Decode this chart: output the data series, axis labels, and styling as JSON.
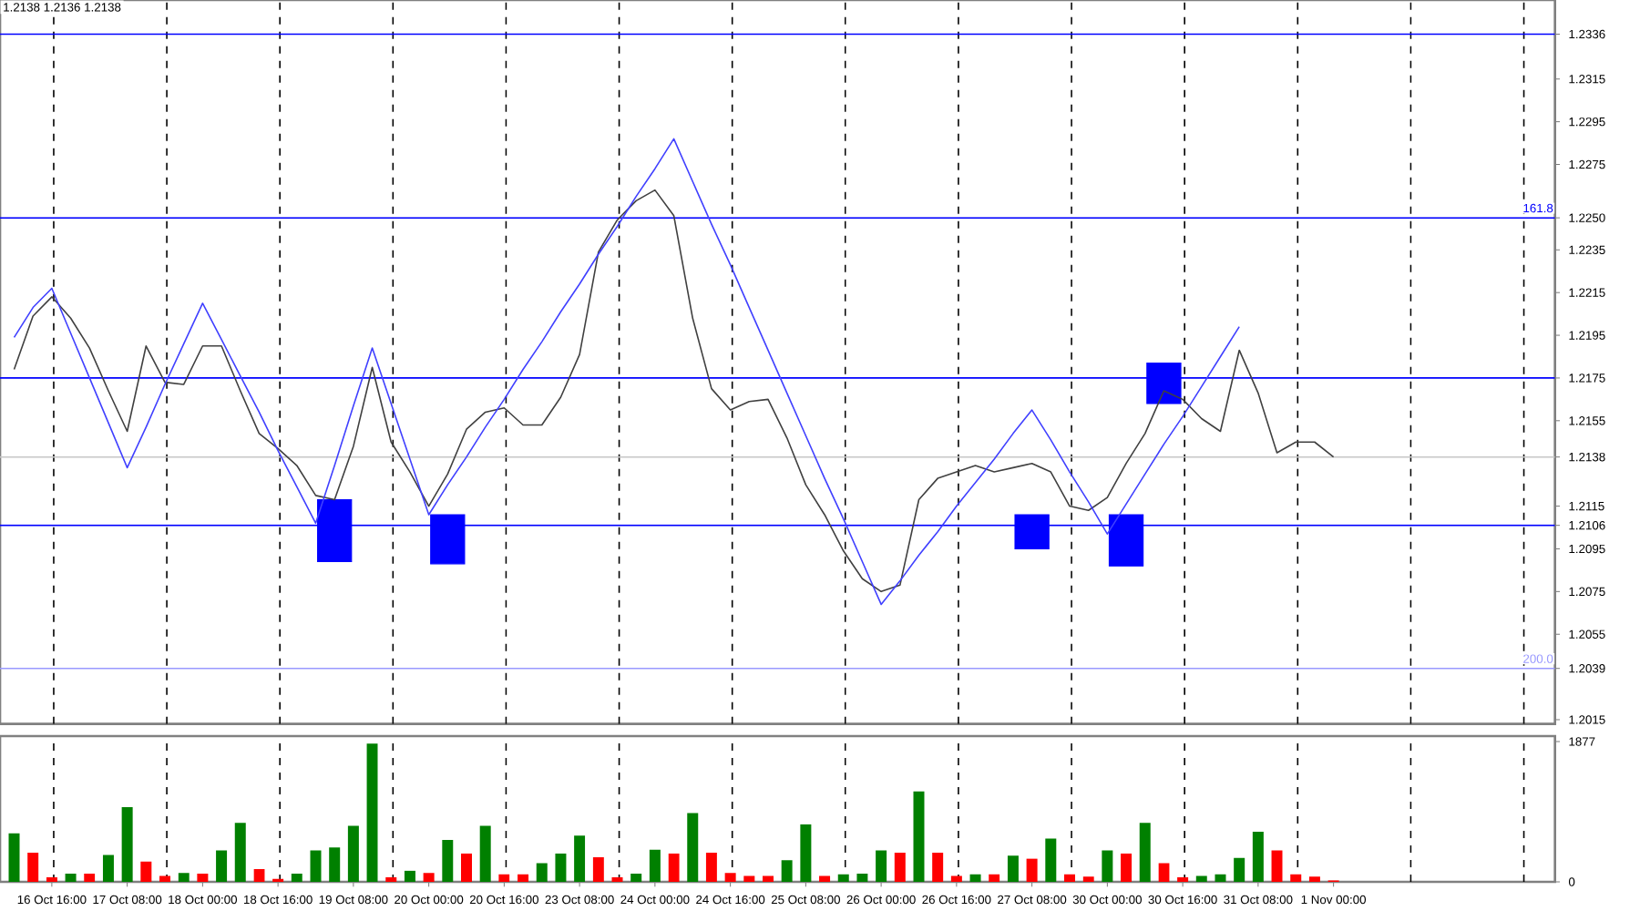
{
  "chart_data": [
    {
      "type": "line",
      "annotations": [
        "1.2138 1.2136 1.2138",
        {
          "text": "161.8",
          "y": 1.225
        },
        {
          "text": "200.0",
          "y": 1.2039
        }
      ],
      "grid": "x",
      "series": [
        {
          "color": "#404040",
          "values": [
            1.2179,
            1.2204,
            1.2213,
            1.2203,
            1.2189,
            1.2169,
            1.215,
            1.219,
            1.2173,
            1.2172,
            1.219,
            1.219,
            1.2169,
            1.2149,
            1.2142,
            1.2134,
            1.212,
            1.2118,
            1.2143,
            1.218,
            1.2145,
            1.2131,
            1.2115,
            1.213,
            1.2151,
            1.2159,
            1.2161,
            1.2153,
            1.2153,
            1.2166,
            1.2186,
            1.2234,
            1.2249,
            1.2258,
            1.2263,
            1.2251,
            1.2203,
            1.217,
            1.216,
            1.2164,
            1.2165,
            1.2147,
            1.2125,
            1.2111,
            1.2094,
            1.2081,
            1.2075,
            1.2078,
            1.2118,
            1.2128,
            1.2131,
            1.2134,
            1.2131,
            1.2133,
            1.2135,
            1.2131,
            1.2115,
            1.2113,
            1.2119,
            1.2135,
            1.2149,
            1.2169,
            1.2165,
            1.2156,
            1.215,
            1.2188,
            1.2168,
            1.214,
            1.2145,
            1.2145,
            1.2138,
            null,
            null,
            null,
            null,
            null,
            null,
            null,
            null,
            null,
            null,
            null
          ]
        },
        {
          "color": "#4040ff",
          "values": [
            1.2194,
            1.2208,
            1.2217,
            1.2196,
            1.2175,
            1.2154,
            1.2133,
            1.2152,
            1.2172,
            1.2191,
            1.221,
            1.2193,
            1.2176,
            1.2159,
            1.2141,
            1.2124,
            1.2107,
            1.2134,
            1.2162,
            1.2189,
            1.2163,
            1.2137,
            1.2111,
            1.2125,
            1.2138,
            1.2152,
            1.2165,
            1.2179,
            1.2192,
            1.2206,
            1.2219,
            1.2233,
            1.2246,
            1.226,
            1.2273,
            1.2287,
            1.2267,
            1.2247,
            1.2228,
            1.2208,
            1.2188,
            1.2168,
            1.2148,
            1.2128,
            1.2109,
            1.2089,
            1.2069,
            1.208,
            1.2092,
            1.2103,
            1.2115,
            1.2126,
            1.2137,
            1.2149,
            1.216,
            1.2146,
            1.2131,
            1.2117,
            1.2102,
            1.2116,
            1.213,
            1.2144,
            1.2157,
            1.2171,
            1.2185,
            1.2199,
            null,
            null,
            null,
            null,
            null,
            null,
            null,
            null,
            null,
            null,
            null,
            null,
            null,
            null,
            null,
            null
          ]
        },
        {
          "type": "bar",
          "color": "#0000ff",
          "values": [
            null,
            null,
            null,
            null,
            null,
            null,
            null,
            null,
            null,
            null,
            null,
            null,
            null,
            null,
            null,
            null,
            null,
            0.0029,
            null,
            null,
            null,
            null,
            null,
            0.0023,
            null,
            null,
            null,
            null,
            null,
            null,
            null,
            null,
            null,
            null,
            null,
            null,
            null,
            null,
            null,
            null,
            null,
            null,
            null,
            null,
            null,
            null,
            null,
            null,
            null,
            null,
            null,
            null,
            null,
            null,
            0.0016,
            null,
            null,
            null,
            null,
            0.0024,
            null,
            0.0019,
            null,
            null,
            null,
            null,
            null,
            null,
            null,
            null,
            null,
            null,
            null,
            null,
            null,
            null,
            null,
            null,
            null,
            null,
            null,
            null
          ],
          "base": [
            null,
            null,
            null,
            null,
            null,
            null,
            null,
            null,
            null,
            null,
            null,
            null,
            null,
            null,
            null,
            null,
            null,
            1.2089,
            null,
            null,
            null,
            null,
            null,
            1.2088,
            null,
            null,
            null,
            null,
            null,
            null,
            null,
            null,
            null,
            null,
            null,
            null,
            null,
            null,
            null,
            null,
            null,
            null,
            null,
            null,
            null,
            null,
            null,
            null,
            null,
            null,
            null,
            null,
            null,
            null,
            1.2095,
            null,
            null,
            null,
            null,
            1.2087,
            null,
            1.2163,
            null,
            null,
            null,
            null,
            null,
            null,
            null,
            null,
            null,
            null,
            null,
            null,
            null,
            null,
            null,
            null,
            null,
            null,
            null,
            null
          ]
        }
      ],
      "ylim": [
        1.2013,
        1.2352
      ],
      "yticks": [
        1.2015,
        {
          "value": 1.2039,
          "label": "1.2039"
        },
        1.2055,
        1.2075,
        1.2095,
        1.2106,
        1.2115,
        1.2138,
        1.2155,
        1.2175,
        1.2195,
        1.2215,
        1.2235,
        {
          "value": 1.225,
          "label": "1.2250"
        },
        1.2275,
        1.2295,
        1.2315,
        1.2336
      ],
      "ref_lines": [
        {
          "axis": "y",
          "value": 1.2336,
          "color": "#0000ff"
        },
        {
          "axis": "y",
          "value": 1.225,
          "color": "#0000ff"
        },
        {
          "axis": "y",
          "value": 1.2175,
          "color": "#0000ff"
        },
        {
          "axis": "y",
          "value": 1.2138,
          "color": "#c8c8c8"
        },
        {
          "axis": "y",
          "value": 1.2106,
          "color": "#0000ff"
        },
        {
          "axis": "y",
          "value": 1.2039,
          "color": "#9999ff"
        }
      ]
    },
    {
      "type": "bar",
      "categories": [
        null,
        null,
        "16 Oct 16:00",
        null,
        null,
        null,
        "17 Oct 08:00",
        null,
        null,
        null,
        "18 Oct 00:00",
        null,
        null,
        null,
        "18 Oct 16:00",
        null,
        null,
        null,
        "19 Oct 08:00",
        null,
        null,
        null,
        "20 Oct 00:00",
        null,
        null,
        null,
        "20 Oct 16:00",
        null,
        null,
        null,
        "23 Oct 08:00",
        null,
        null,
        null,
        "24 Oct 00:00",
        null,
        null,
        null,
        "24 Oct 16:00",
        null,
        null,
        null,
        "25 Oct 08:00",
        null,
        null,
        null,
        "26 Oct 00:00",
        null,
        null,
        null,
        "26 Oct 16:00",
        null,
        null,
        null,
        "27 Oct 08:00",
        null,
        null,
        null,
        "30 Oct 00:00",
        null,
        null,
        null,
        "30 Oct 16:00",
        null,
        null,
        null,
        "31 Oct 08:00",
        null,
        null,
        null,
        "1 Nov 00:00",
        null,
        null,
        null,
        null,
        null,
        null,
        null,
        null,
        null,
        null,
        null
      ],
      "series": [
        {
          "values": [
            650,
            390,
            60,
            110,
            110,
            360,
            1000,
            270,
            80,
            120,
            110,
            420,
            790,
            170,
            40,
            110,
            420,
            460,
            750,
            1850,
            60,
            150,
            120,
            560,
            380,
            750,
            100,
            100,
            250,
            380,
            620,
            330,
            60,
            110,
            430,
            380,
            920,
            390,
            120,
            80,
            80,
            290,
            770,
            80,
            100,
            110,
            420,
            390,
            1210,
            390,
            80,
            100,
            100,
            350,
            310,
            580,
            100,
            70,
            420,
            380,
            790,
            250,
            60,
            80,
            100,
            320,
            670,
            420,
            100,
            70,
            20,
            null,
            null,
            null,
            null,
            null,
            null,
            null,
            null,
            null,
            null,
            null
          ],
          "colors": [
            "#008000",
            "#ff0000",
            "#ff0000",
            "#008000",
            "#ff0000",
            "#008000",
            "#008000",
            "#ff0000",
            "#ff0000",
            "#008000",
            "#ff0000",
            "#008000",
            "#008000",
            "#ff0000",
            "#ff0000",
            "#008000",
            "#008000",
            "#008000",
            "#008000",
            "#008000",
            "#ff0000",
            "#008000",
            "#ff0000",
            "#008000",
            "#ff0000",
            "#008000",
            "#ff0000",
            "#ff0000",
            "#008000",
            "#008000",
            "#008000",
            "#ff0000",
            "#ff0000",
            "#008000",
            "#008000",
            "#ff0000",
            "#008000",
            "#ff0000",
            "#ff0000",
            "#ff0000",
            "#ff0000",
            "#008000",
            "#008000",
            "#ff0000",
            "#008000",
            "#008000",
            "#008000",
            "#ff0000",
            "#008000",
            "#ff0000",
            "#ff0000",
            "#008000",
            "#ff0000",
            "#008000",
            "#ff0000",
            "#008000",
            "#ff0000",
            "#ff0000",
            "#008000",
            "#ff0000",
            "#008000",
            "#ff0000",
            "#ff0000",
            "#008000",
            "#008000",
            "#008000",
            "#008000",
            "#ff0000",
            "#ff0000",
            "#ff0000",
            "#ff0000",
            null,
            null,
            null,
            null,
            null,
            null,
            null,
            null,
            null,
            null,
            null
          ]
        }
      ],
      "ylim": [
        0,
        1950
      ],
      "yticks": [
        0,
        1877
      ],
      "grid": "x"
    }
  ]
}
